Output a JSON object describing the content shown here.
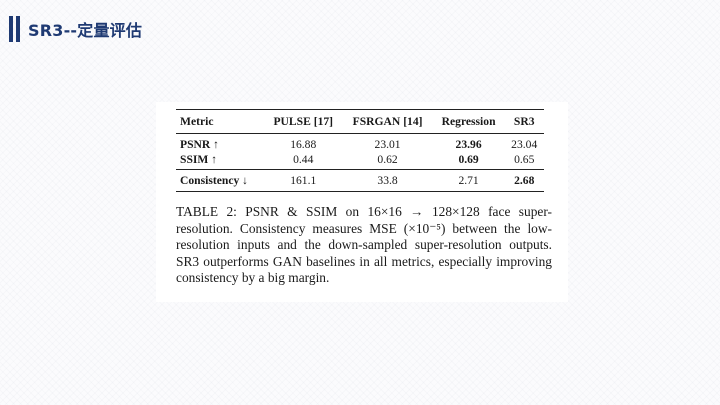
{
  "slide": {
    "title": "SR3--定量评估"
  },
  "table": {
    "headers": [
      "Metric",
      "PULSE [17]",
      "FSRGAN [14]",
      "Regression",
      "SR3"
    ],
    "rows": [
      {
        "metric": "PSNR ↑",
        "values": [
          "16.88",
          "23.01",
          "23.96",
          "23.04"
        ],
        "bold_index": 2
      },
      {
        "metric": "SSIM ↑",
        "values": [
          "0.44",
          "0.62",
          "0.69",
          "0.65"
        ],
        "bold_index": 2
      },
      {
        "metric": "Consistency ↓",
        "values": [
          "161.1",
          "33.8",
          "2.71",
          "2.68"
        ],
        "bold_index": 3
      }
    ]
  },
  "caption": {
    "text": "TABLE 2: PSNR & SSIM on 16×16 → 128×128 face super-resolution. Consistency measures MSE (×10⁻⁵) between the low-resolution inputs and the down-sampled super-resolution outputs. SR3 outperforms GAN baselines in all metrics, especially improving consistency by a big margin."
  },
  "colors": {
    "title": "#1f3a73",
    "accent_bar": "#1f3a73",
    "text": "#1a1a1a"
  }
}
